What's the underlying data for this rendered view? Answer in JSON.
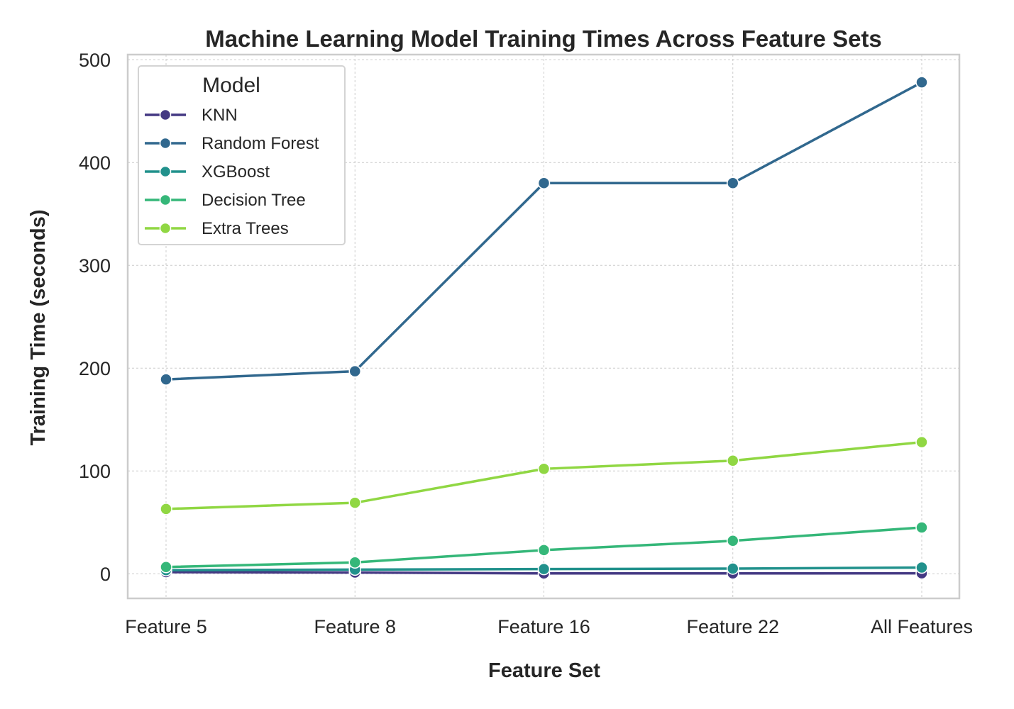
{
  "chart_data": {
    "type": "line",
    "title": "Machine Learning Model Training Times Across Feature Sets",
    "xlabel": "Feature Set",
    "ylabel": "Training Time (seconds)",
    "categories": [
      "Feature 5",
      "Feature 8",
      "Feature 16",
      "Feature 22",
      "All Features"
    ],
    "ylim": [
      -24,
      505
    ],
    "yticks": [
      0,
      100,
      200,
      300,
      400,
      500
    ],
    "grid": true,
    "legend": {
      "title": "Model",
      "placement": "top-left"
    },
    "series": [
      {
        "name": "KNN",
        "color": "#443983",
        "values": [
          1.5,
          1.2,
          0.3,
          0.3,
          0.4
        ]
      },
      {
        "name": "Random Forest",
        "color": "#31688e",
        "values": [
          189,
          197,
          380,
          380,
          478
        ]
      },
      {
        "name": "XGBoost",
        "color": "#21918c",
        "values": [
          3.5,
          4,
          4.5,
          5,
          6
        ]
      },
      {
        "name": "Decision Tree",
        "color": "#35b779",
        "values": [
          6.5,
          11,
          23,
          32,
          45
        ]
      },
      {
        "name": "Extra Trees",
        "color": "#90d743",
        "values": [
          63,
          69,
          102,
          110,
          128
        ]
      }
    ]
  }
}
